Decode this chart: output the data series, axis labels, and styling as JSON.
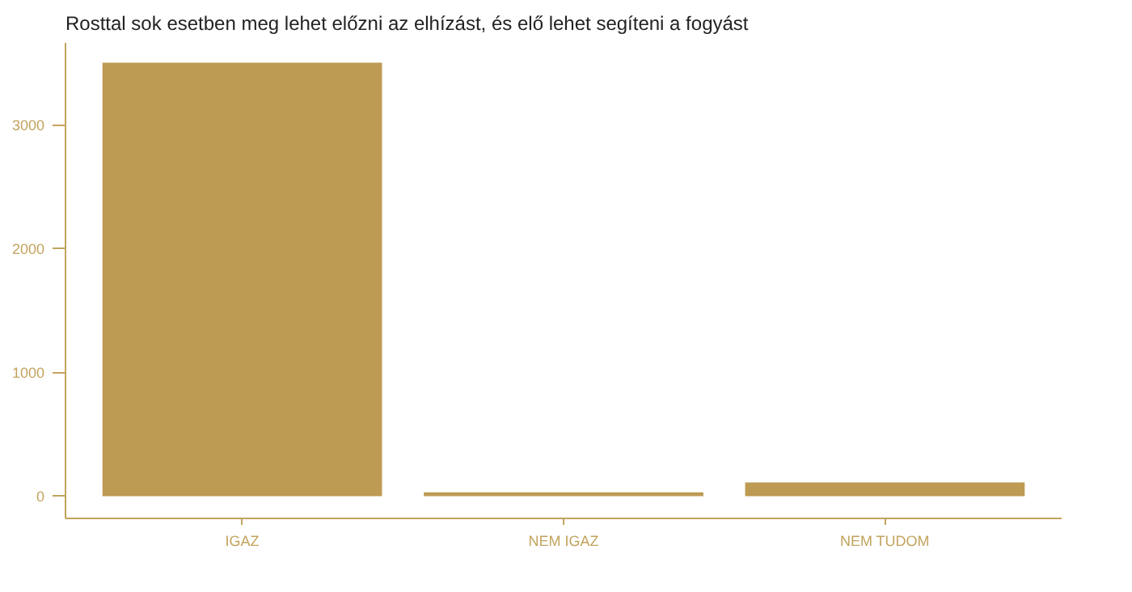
{
  "chart_data": {
    "type": "bar",
    "title": "Rosttal sok esetben meg lehet előzni az elhízást, és elő lehet segíteni a fogyást",
    "categories": [
      "IGAZ",
      "NEM IGAZ",
      "NEM TUDOM"
    ],
    "values": [
      3500,
      30,
      110
    ],
    "color": "#bd9b53",
    "ylim": [
      -180,
      3660
    ],
    "yticks": [
      0,
      1000,
      2000,
      3000
    ],
    "grid": false
  }
}
